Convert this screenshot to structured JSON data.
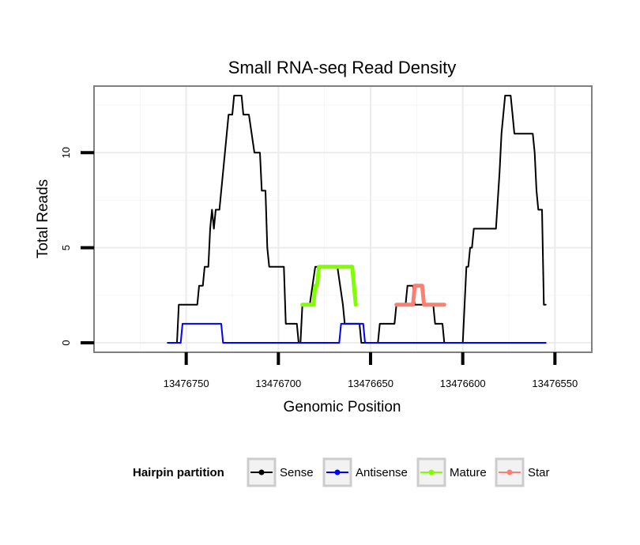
{
  "chart_data": {
    "type": "line",
    "title": "Small RNA-seq Read Density",
    "xlabel": "Genomic Position",
    "ylabel": "Total Reads",
    "x_reversed": true,
    "xlim": [
      13476800,
      13476530
    ],
    "ylim": [
      -0.5,
      13.5
    ],
    "x_ticks": [
      13476750,
      13476700,
      13476650,
      13476600,
      13476550
    ],
    "x_tick_labels": [
      "13476750",
      "13476700",
      "13476650",
      "13476600",
      "13476550"
    ],
    "y_ticks": [
      0,
      5,
      10
    ],
    "y_tick_labels": [
      "0",
      "5",
      "10"
    ],
    "grid": true,
    "legend": {
      "title": "Hairpin partition",
      "position": "bottom",
      "entries": [
        "Sense",
        "Antisense",
        "Mature",
        "Star"
      ]
    },
    "series": [
      {
        "name": "Sense",
        "color": "#000000",
        "points": [
          [
            13476760,
            0
          ],
          [
            13476755,
            0
          ],
          [
            13476754,
            2
          ],
          [
            13476744,
            2
          ],
          [
            13476743,
            3
          ],
          [
            13476741,
            3
          ],
          [
            13476740,
            4
          ],
          [
            13476738,
            4
          ],
          [
            13476737,
            6
          ],
          [
            13476736,
            7
          ],
          [
            13476735,
            6
          ],
          [
            13476734,
            7
          ],
          [
            13476732,
            7
          ],
          [
            13476728,
            11
          ],
          [
            13476727,
            12
          ],
          [
            13476725,
            12
          ],
          [
            13476724,
            13
          ],
          [
            13476720,
            13
          ],
          [
            13476719,
            12
          ],
          [
            13476716,
            12
          ],
          [
            13476713,
            10
          ],
          [
            13476710,
            10
          ],
          [
            13476709,
            8
          ],
          [
            13476707,
            8
          ],
          [
            13476706,
            5
          ],
          [
            13476705,
            4
          ],
          [
            13476697,
            4
          ],
          [
            13476696,
            1
          ],
          [
            13476690,
            1
          ],
          [
            13476689,
            0
          ],
          [
            13476688,
            0
          ],
          [
            13476687,
            2
          ],
          [
            13476683,
            2
          ],
          [
            13476680,
            4
          ],
          [
            13476668,
            4
          ],
          [
            13476665,
            2
          ],
          [
            13476664,
            1
          ],
          [
            13476656,
            1
          ],
          [
            13476655,
            0
          ],
          [
            13476646,
            0
          ],
          [
            13476645,
            1
          ],
          [
            13476637,
            1
          ],
          [
            13476636,
            2
          ],
          [
            13476631,
            2
          ],
          [
            13476630,
            3
          ],
          [
            13476627,
            3
          ],
          [
            13476626,
            2
          ],
          [
            13476616,
            2
          ],
          [
            13476615,
            1
          ],
          [
            13476611,
            1
          ],
          [
            13476610,
            0
          ],
          [
            13476600,
            0
          ],
          [
            13476599,
            2
          ],
          [
            13476598,
            4
          ],
          [
            13476597,
            4
          ],
          [
            13476596,
            5
          ],
          [
            13476595,
            5
          ],
          [
            13476594,
            6
          ],
          [
            13476582,
            6
          ],
          [
            13476580,
            9
          ],
          [
            13476579,
            11
          ],
          [
            13476578,
            12
          ],
          [
            13476577,
            13
          ],
          [
            13476574,
            13
          ],
          [
            13476573,
            12
          ],
          [
            13476572,
            11
          ],
          [
            13476562,
            11
          ],
          [
            13476561,
            10
          ],
          [
            13476560,
            8
          ],
          [
            13476559,
            7
          ],
          [
            13476557,
            7
          ],
          [
            13476556,
            2
          ],
          [
            13476555,
            2
          ]
        ]
      },
      {
        "name": "Antisense",
        "color": "#0000ff",
        "points": [
          [
            13476760,
            0
          ],
          [
            13476753,
            0
          ],
          [
            13476752,
            1
          ],
          [
            13476731,
            1
          ],
          [
            13476730,
            0
          ],
          [
            13476667,
            0
          ],
          [
            13476666,
            1
          ],
          [
            13476654,
            1
          ],
          [
            13476653,
            0
          ],
          [
            13476555,
            0
          ]
        ]
      },
      {
        "name": "Mature",
        "color": "#7fff00",
        "points": [
          [
            13476687,
            2
          ],
          [
            13476681,
            2
          ],
          [
            13476680,
            3
          ],
          [
            13476679,
            3
          ],
          [
            13476678,
            4
          ],
          [
            13476660,
            4
          ],
          [
            13476659,
            3
          ],
          [
            13476658,
            2
          ]
        ]
      },
      {
        "name": "Star",
        "color": "#fa8072",
        "points": [
          [
            13476636,
            2
          ],
          [
            13476627,
            2
          ],
          [
            13476626,
            3
          ],
          [
            13476622,
            3
          ],
          [
            13476621,
            2
          ],
          [
            13476610,
            2
          ]
        ]
      }
    ]
  }
}
